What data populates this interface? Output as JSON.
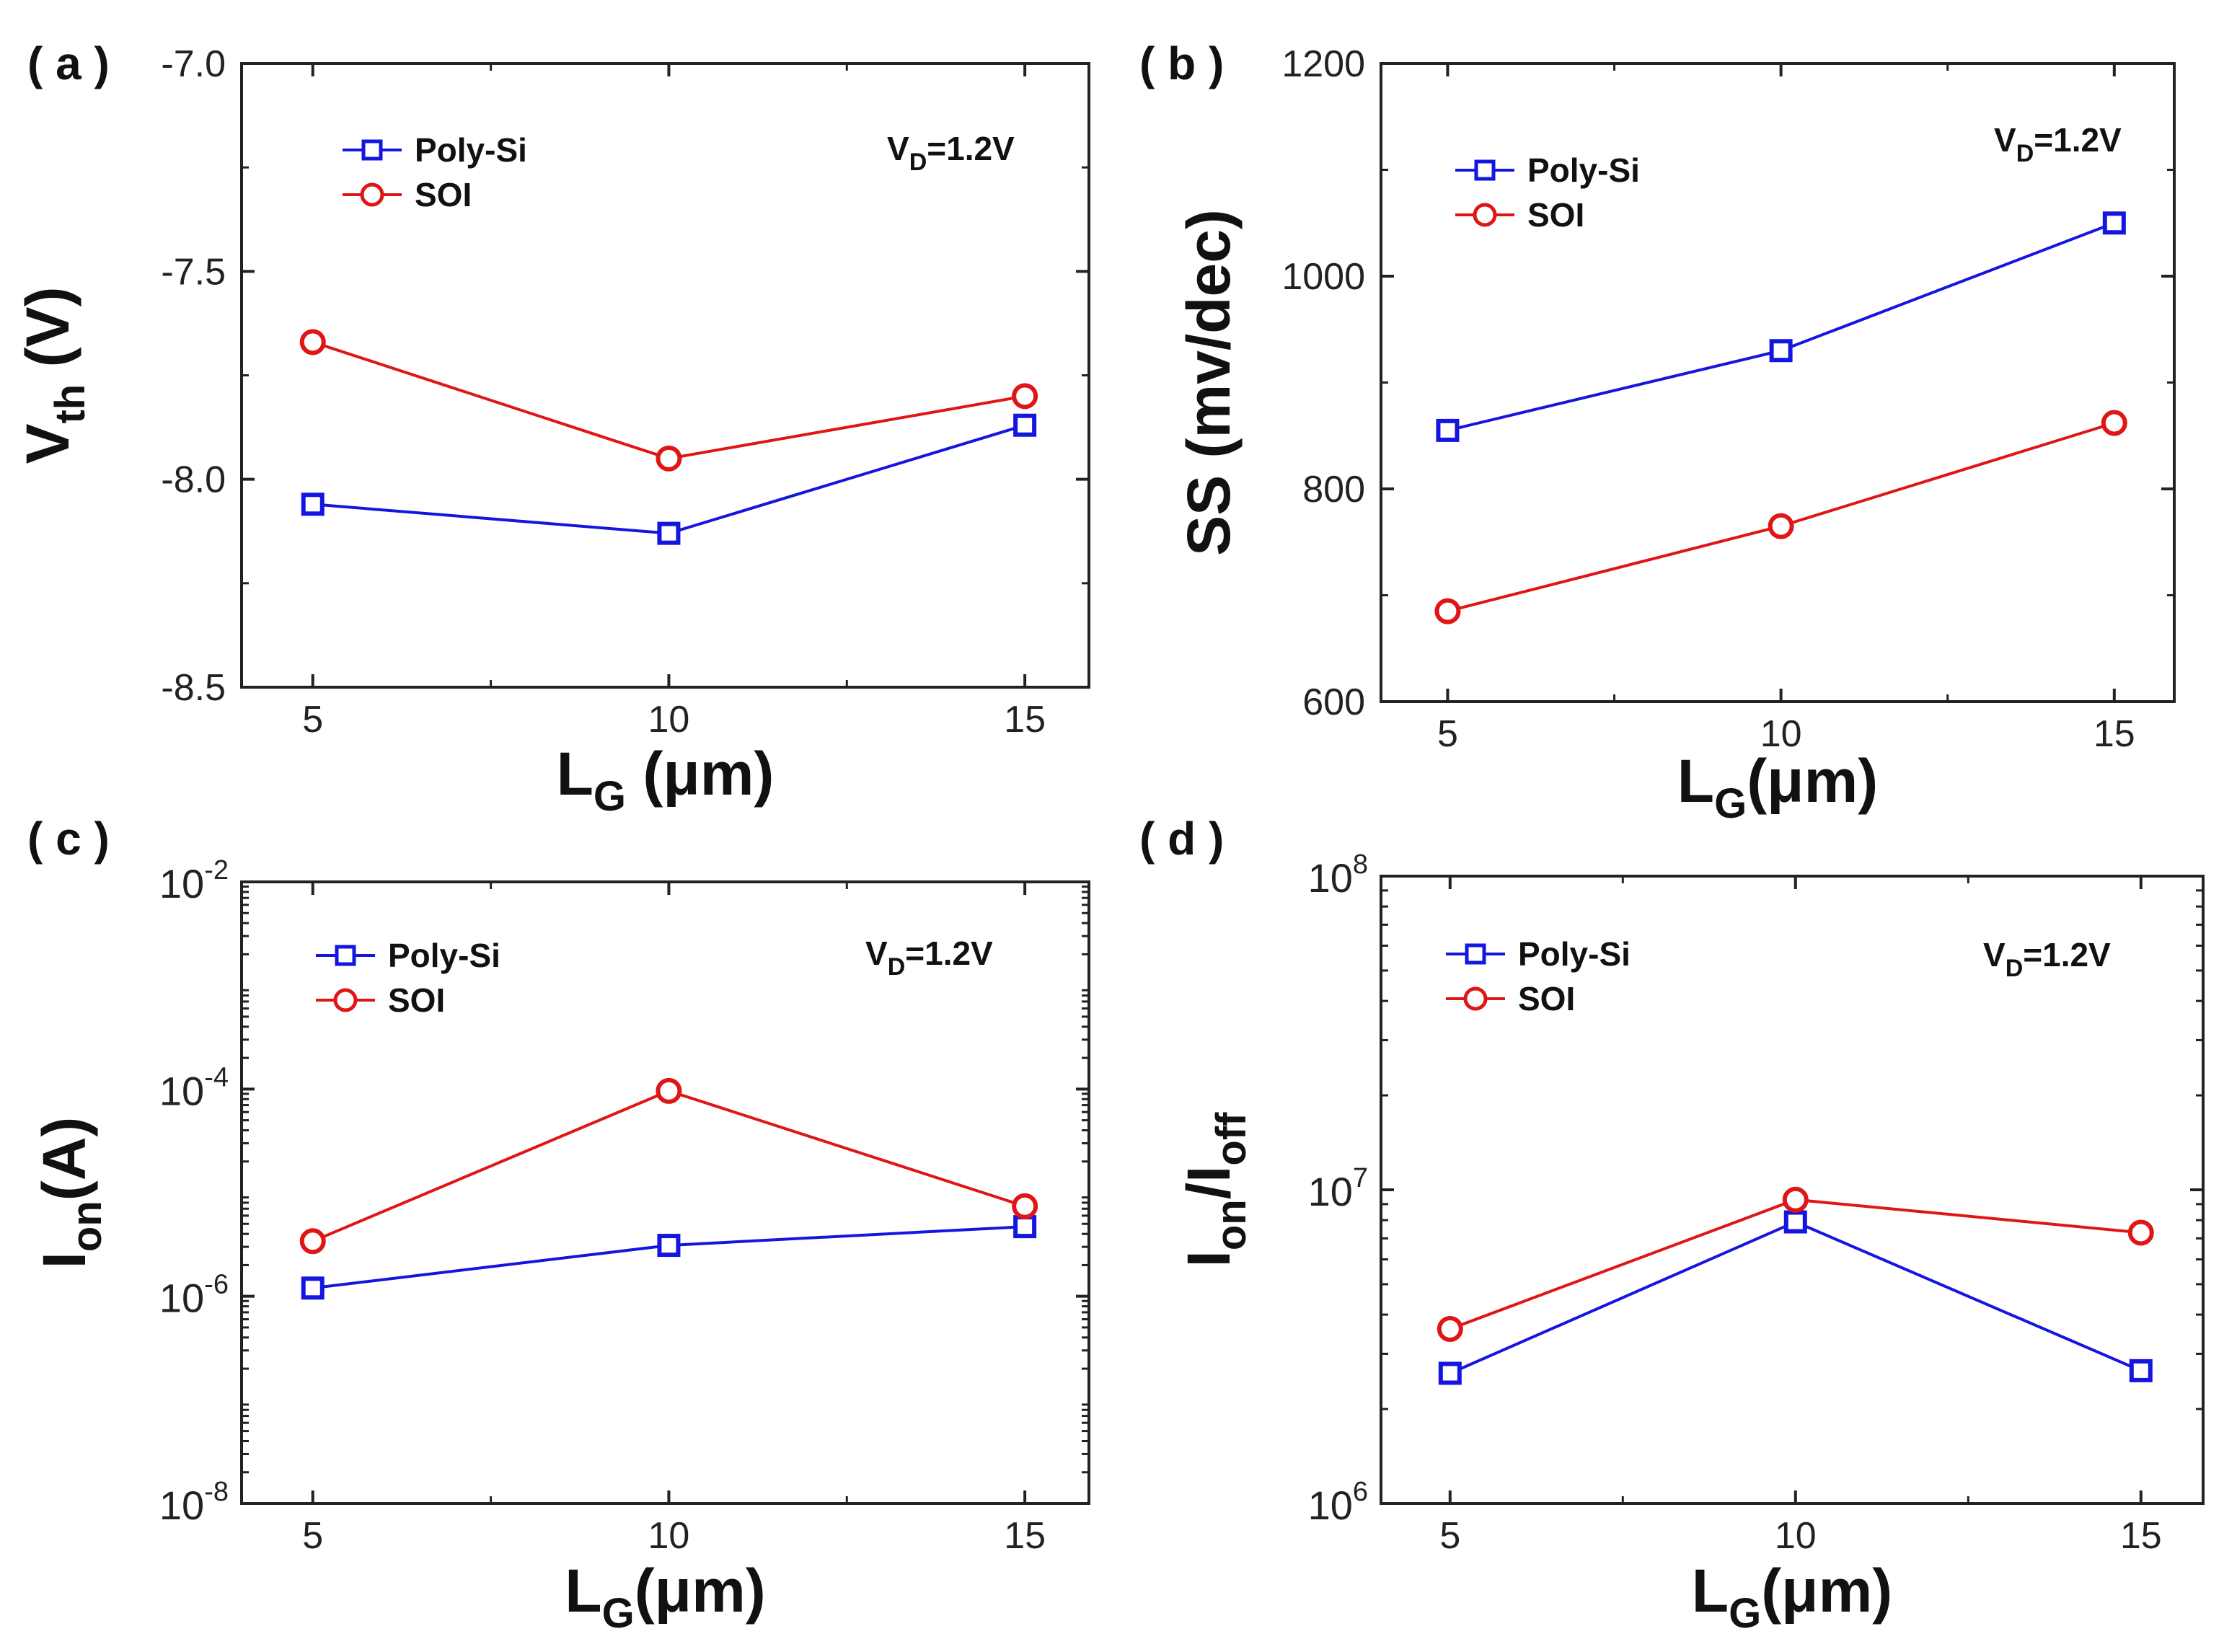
{
  "figure": {
    "panels": [
      {
        "label": "( a )"
      },
      {
        "label": "( b )"
      },
      {
        "label": "( c )"
      },
      {
        "label": "( d )"
      }
    ]
  },
  "chart_data": [
    {
      "panel": "a",
      "type": "line",
      "scale": "linear",
      "xlabel": {
        "main": "L",
        "sub": "G",
        "rest": " (μm)"
      },
      "ylabel": {
        "main": "V",
        "sub": "th",
        "rest": " (V)"
      },
      "annotation": {
        "main": "V",
        "sub": "D",
        "rest": "=1.2V"
      },
      "categories": [
        5,
        10,
        15
      ],
      "x_ticks": [
        "5",
        "10",
        "15"
      ],
      "xlim": [
        4,
        15.9
      ],
      "ylim": [
        -8.5,
        -7.0
      ],
      "y_ticks": [
        {
          "value": -7.0,
          "label": "-7.0"
        },
        {
          "value": -7.5,
          "label": "-7.5"
        },
        {
          "value": -8.0,
          "label": "-8.0"
        },
        {
          "value": -8.5,
          "label": "-8.5"
        }
      ],
      "minor_y": [
        -7.25,
        -7.75,
        -8.25
      ],
      "minor_x": [
        7.5,
        12.5
      ],
      "series": [
        {
          "name": "Poly-Si",
          "color": "#1515e0",
          "marker": "square",
          "values": [
            -8.06,
            -8.13,
            -7.87
          ]
        },
        {
          "name": "SOI",
          "color": "#e01515",
          "marker": "circle",
          "values": [
            -7.67,
            -7.95,
            -7.8
          ]
        }
      ]
    },
    {
      "panel": "b",
      "type": "line",
      "scale": "linear",
      "xlabel": {
        "main": "L",
        "sub": "G",
        "rest": "(μm)"
      },
      "ylabel": {
        "main": "SS (mv/dec)",
        "sub": "",
        "rest": ""
      },
      "annotation": {
        "main": "V",
        "sub": "D",
        "rest": "=1.2V"
      },
      "categories": [
        5,
        10,
        15
      ],
      "x_ticks": [
        "5",
        "10",
        "15"
      ],
      "xlim": [
        4,
        15.9
      ],
      "ylim": [
        600,
        1200
      ],
      "y_ticks": [
        {
          "value": 600,
          "label": "600"
        },
        {
          "value": 800,
          "label": "800"
        },
        {
          "value": 1000,
          "label": "1000"
        },
        {
          "value": 1200,
          "label": "1200"
        }
      ],
      "minor_y": [
        700,
        900,
        1100
      ],
      "minor_x": [
        7.5,
        12.5
      ],
      "series": [
        {
          "name": "Poly-Si",
          "color": "#1515e0",
          "marker": "square",
          "values": [
            855,
            930,
            1050
          ]
        },
        {
          "name": "SOI",
          "color": "#e01515",
          "marker": "circle",
          "values": [
            685,
            765,
            862
          ]
        }
      ]
    },
    {
      "panel": "c",
      "type": "line",
      "scale": "log",
      "xlabel": {
        "main": "L",
        "sub": "G",
        "rest": "(μm)"
      },
      "ylabel": {
        "main": "I",
        "sub": "on",
        "rest": "(A)"
      },
      "annotation": {
        "main": "V",
        "sub": "D",
        "rest": "=1.2V"
      },
      "categories": [
        5,
        10,
        15
      ],
      "x_ticks": [
        "5",
        "10",
        "15"
      ],
      "xlim": [
        4,
        15.9
      ],
      "ylim": [
        1e-08,
        0.01
      ],
      "y_ticks": [
        {
          "value": 1e-08,
          "base": "10",
          "exp": "-8"
        },
        {
          "value": 1e-06,
          "base": "10",
          "exp": "-6"
        },
        {
          "value": 0.0001,
          "base": "10",
          "exp": "-4"
        },
        {
          "value": 0.01,
          "base": "10",
          "exp": "-2"
        }
      ],
      "minor_x": [
        7.5,
        12.5
      ],
      "series": [
        {
          "name": "Poly-Si",
          "color": "#1515e0",
          "marker": "square",
          "values": [
            1.2e-06,
            3.1e-06,
            4.7e-06
          ]
        },
        {
          "name": "SOI",
          "color": "#e01515",
          "marker": "circle",
          "values": [
            3.4e-06,
            9.6e-05,
            7.4e-06
          ]
        }
      ]
    },
    {
      "panel": "d",
      "type": "line",
      "scale": "log",
      "xlabel": {
        "main": "L",
        "sub": "G",
        "rest": "(μm)"
      },
      "ylabel": {
        "main": "I",
        "sub": "on",
        "rest": "/I",
        "sub2": "off"
      },
      "annotation": {
        "main": "V",
        "sub": "D",
        "rest": "=1.2V"
      },
      "categories": [
        5,
        10,
        15
      ],
      "x_ticks": [
        "5",
        "10",
        "15"
      ],
      "xlim": [
        4,
        15.9
      ],
      "ylim": [
        1000000.0,
        100000000.0
      ],
      "y_ticks": [
        {
          "value": 1000000.0,
          "base": "10",
          "exp": "6"
        },
        {
          "value": 10000000.0,
          "base": "10",
          "exp": "7"
        },
        {
          "value": 100000000.0,
          "base": "10",
          "exp": "8"
        }
      ],
      "minor_x": [
        7.5,
        12.5
      ],
      "series": [
        {
          "name": "Poly-Si",
          "color": "#1515e0",
          "marker": "square",
          "values": [
            2600000.0,
            7900000.0,
            2650000.0
          ]
        },
        {
          "name": "SOI",
          "color": "#e01515",
          "marker": "circle",
          "values": [
            3600000.0,
            9300000.0,
            7300000.0
          ]
        }
      ]
    }
  ]
}
